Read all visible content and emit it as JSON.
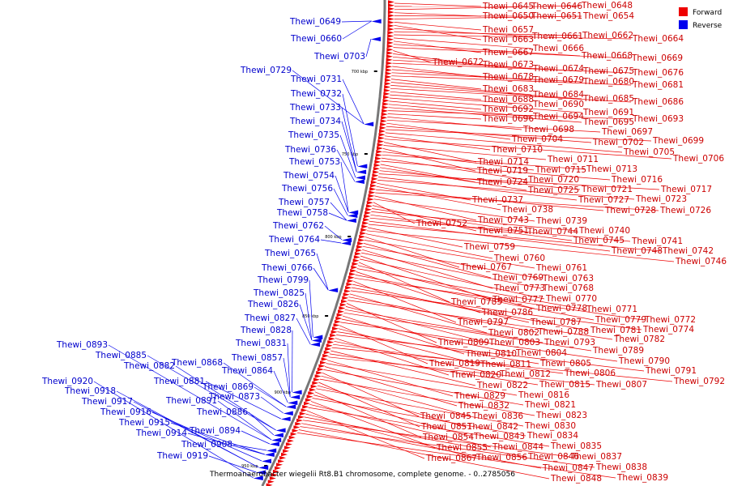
{
  "caption": "Thermoanaerobacter wiegelii Rt8.B1 chromosome, complete genome. - 0..2785056",
  "legend": {
    "forward": {
      "label": "Forward",
      "color": "#ee0000"
    },
    "reverse": {
      "label": "Reverse",
      "color": "#0000ee"
    }
  },
  "ticks": [
    "700 kbp",
    "750 kbp",
    "800 kbp",
    "850 kbp",
    "900 kbp",
    "950 kbp"
  ],
  "reverse_genes": [
    "Thewi_0649",
    "Thewi_0660",
    "Thewi_0703",
    "Thewi_0729",
    "Thewi_0731",
    "Thewi_0732",
    "Thewi_0733",
    "Thewi_0734",
    "Thewi_0735",
    "Thewi_0736",
    "Thewi_0753",
    "Thewi_0754",
    "Thewi_0756",
    "Thewi_0757",
    "Thewi_0758",
    "Thewi_0762",
    "Thewi_0764",
    "Thewi_0765",
    "Thewi_0766",
    "Thewi_0799",
    "Thewi_0825",
    "Thewi_0826",
    "Thewi_0827",
    "Thewi_0828",
    "Thewi_0831",
    "Thewi_0857",
    "Thewi_0864",
    "Thewi_0868",
    "Thewi_0869",
    "Thewi_0873",
    "Thewi_0881",
    "Thewi_0882",
    "Thewi_0885",
    "Thewi_0886",
    "Thewi_0891",
    "Thewi_0893",
    "Thewi_0894",
    "Thewi_0908",
    "Thewi_0914",
    "Thewi_0915",
    "Thewi_0916",
    "Thewi_0917",
    "Thewi_0918",
    "Thewi_0919",
    "Thewi_0920"
  ],
  "forward_genes": [
    "Thewi_0645",
    "Thewi_0646",
    "Thewi_0648",
    "Thewi_0650",
    "Thewi_0651",
    "Thewi_0654",
    "Thewi_0657",
    "Thewi_0663",
    "Thewi_0661",
    "Thewi_0662",
    "Thewi_0664",
    "Thewi_0666",
    "Thewi_0667",
    "Thewi_0668",
    "Thewi_0669",
    "Thewi_0672",
    "Thewi_0673",
    "Thewi_0674",
    "Thewi_0675",
    "Thewi_0676",
    "Thewi_0678",
    "Thewi_0679",
    "Thewi_0680",
    "Thewi_0681",
    "Thewi_0683",
    "Thewi_0684",
    "Thewi_0685",
    "Thewi_0686",
    "Thewi_0688",
    "Thewi_0690",
    "Thewi_0691",
    "Thewi_0692",
    "Thewi_0694",
    "Thewi_0695",
    "Thewi_0693",
    "Thewi_0696",
    "Thewi_0698",
    "Thewi_0697",
    "Thewi_0704",
    "Thewi_0702",
    "Thewi_0699",
    "Thewi_0705",
    "Thewi_0710",
    "Thewi_0706",
    "Thewi_0714",
    "Thewi_0711",
    "Thewi_0719",
    "Thewi_0715",
    "Thewi_0713",
    "Thewi_0720",
    "Thewi_0716",
    "Thewi_0724",
    "Thewi_0725",
    "Thewi_0721",
    "Thewi_0717",
    "Thewi_0727",
    "Thewi_0723",
    "Thewi_0737",
    "Thewi_0738",
    "Thewi_0728",
    "Thewi_0726",
    "Thewi_0743",
    "Thewi_0739",
    "Thewi_0752",
    "Thewi_0751",
    "Thewi_0744",
    "Thewi_0740",
    "Thewi_0745",
    "Thewi_0741",
    "Thewi_0748",
    "Thewi_0742",
    "Thewi_0759",
    "Thewi_0746",
    "Thewi_0760",
    "Thewi_0767",
    "Thewi_0761",
    "Thewi_0769",
    "Thewi_0763",
    "Thewi_0773",
    "Thewi_0768",
    "Thewi_0777",
    "Thewi_0770",
    "Thewi_0785",
    "Thewi_0778",
    "Thewi_0771",
    "Thewi_0786",
    "Thewi_0779",
    "Thewi_0772",
    "Thewi_0797",
    "Thewi_0787",
    "Thewi_0781",
    "Thewi_0774",
    "Thewi_0802",
    "Thewi_0788",
    "Thewi_0782",
    "Thewi_0809",
    "Thewi_0803",
    "Thewi_0793",
    "Thewi_0789",
    "Thewi_0810",
    "Thewi_0804",
    "Thewi_0790",
    "Thewi_0819",
    "Thewi_0811",
    "Thewi_0805",
    "Thewi_0791",
    "Thewi_0820",
    "Thewi_0812",
    "Thewi_0806",
    "Thewi_0792",
    "Thewi_0822",
    "Thewi_0815",
    "Thewi_0807",
    "Thewi_0829",
    "Thewi_0816",
    "Thewi_0832",
    "Thewi_0821",
    "Thewi_0845",
    "Thewi_0836",
    "Thewi_0823",
    "Thewi_0851",
    "Thewi_0842",
    "Thewi_0830",
    "Thewi_0854",
    "Thewi_0843",
    "Thewi_0834",
    "Thewi_0855",
    "Thewi_0844",
    "Thewi_0835",
    "Thewi_0867",
    "Thewi_0856",
    "Thewi_0846",
    "Thewi_0837",
    "Thewi_0847",
    "Thewi_0838",
    "Thewi_0848",
    "Thewi_0839"
  ]
}
